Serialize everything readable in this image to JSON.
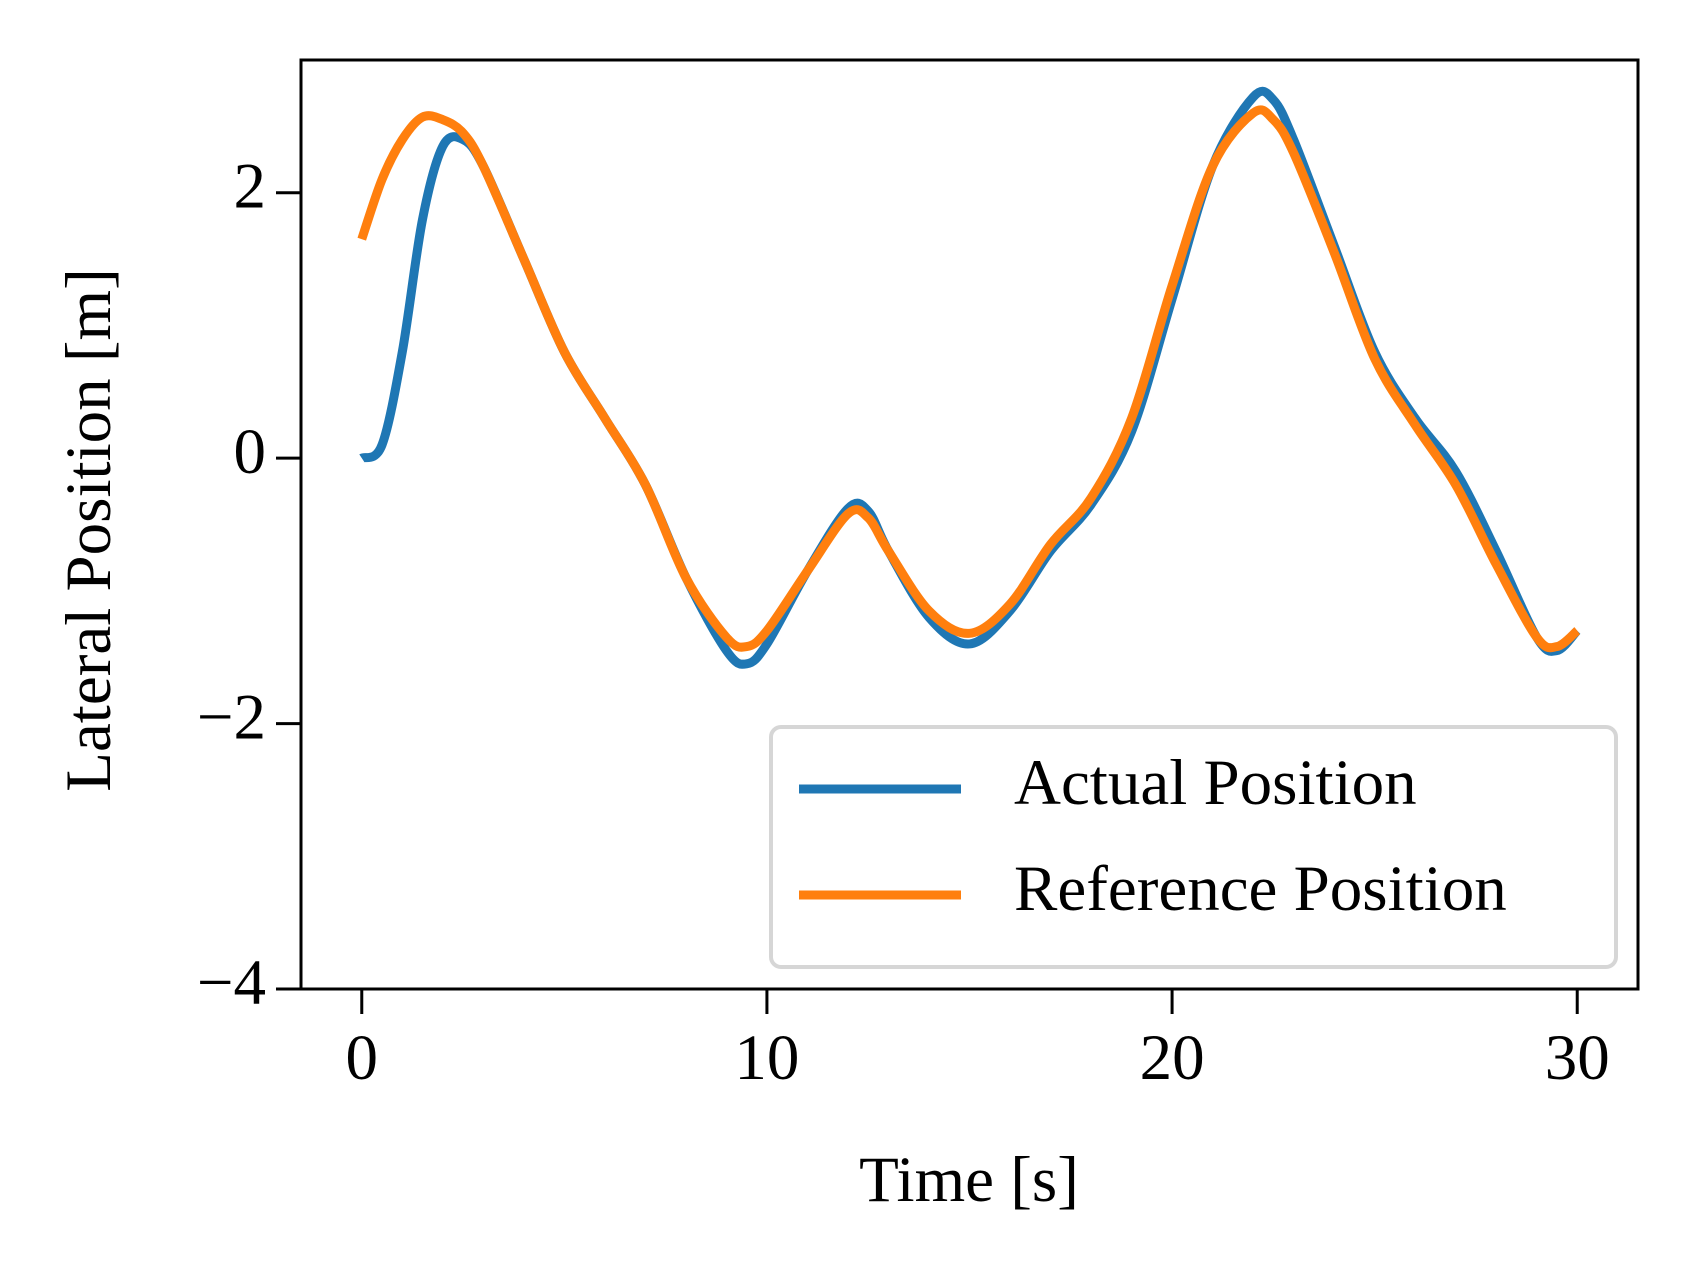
{
  "chart_data": {
    "type": "line",
    "xlabel": "Time [s]",
    "ylabel": "Lateral Position [m]",
    "x": [
      0,
      0.5,
      1,
      1.5,
      2,
      2.5,
      3,
      4,
      5,
      6,
      7,
      8,
      9,
      9.5,
      10,
      11,
      12,
      12.5,
      13,
      14,
      15,
      16,
      17,
      18,
      19,
      20,
      21,
      22,
      22.5,
      23,
      24,
      25,
      26,
      27,
      28,
      29,
      29.5,
      30
    ],
    "series": [
      {
        "name": "Actual Position",
        "color": "#1f77b4",
        "values": [
          0,
          0.1,
          0.8,
          1.8,
          2.35,
          2.4,
          2.2,
          1.5,
          0.8,
          0.3,
          -0.2,
          -0.9,
          -1.45,
          -1.55,
          -1.4,
          -0.85,
          -0.38,
          -0.4,
          -0.7,
          -1.2,
          -1.4,
          -1.15,
          -0.7,
          -0.35,
          0.2,
          1.2,
          2.2,
          2.72,
          2.7,
          2.4,
          1.6,
          0.8,
          0.3,
          -0.1,
          -0.7,
          -1.35,
          -1.45,
          -1.3
        ]
      },
      {
        "name": "Reference Position",
        "color": "#ff7f0e",
        "values": [
          1.65,
          2.1,
          2.4,
          2.57,
          2.55,
          2.45,
          2.2,
          1.5,
          0.8,
          0.3,
          -0.2,
          -0.9,
          -1.35,
          -1.42,
          -1.3,
          -0.85,
          -0.42,
          -0.45,
          -0.7,
          -1.15,
          -1.32,
          -1.1,
          -0.65,
          -0.3,
          0.3,
          1.3,
          2.2,
          2.6,
          2.55,
          2.3,
          1.55,
          0.75,
          0.25,
          -0.2,
          -0.8,
          -1.35,
          -1.42,
          -1.3
        ]
      }
    ],
    "xlim": [
      -1.5,
      31.5
    ],
    "xticks": [
      0,
      10,
      20,
      30
    ],
    "ylim": [
      -4,
      3
    ],
    "yticks": [
      {
        "value": -4,
        "label": "−4"
      },
      {
        "value": -2,
        "label": "−2"
      },
      0,
      2
    ],
    "grid": false,
    "legend": "lower right"
  }
}
